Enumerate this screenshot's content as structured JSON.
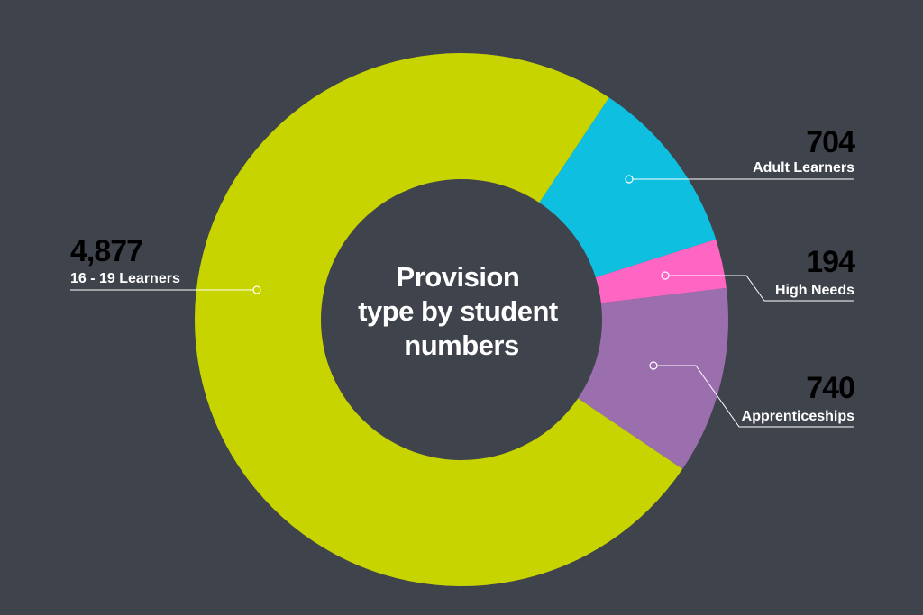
{
  "chart_data": {
    "type": "pie",
    "title": "Provision type by student numbers",
    "title_lines": [
      "Provision",
      "type by student",
      "numbers"
    ],
    "categories": [
      "16 - 19 Learners",
      "Adult Learners",
      "High Needs",
      "Apprenticeships"
    ],
    "values": [
      4877,
      704,
      194,
      740
    ],
    "value_labels": [
      "4,877",
      "704",
      "194",
      "740"
    ],
    "colors": [
      "#c8d400",
      "#0fbfdf",
      "#ff66c4",
      "#9b6fae"
    ],
    "donut": true
  },
  "colors": {
    "background": "#3f434b",
    "text": "#ffffff"
  }
}
